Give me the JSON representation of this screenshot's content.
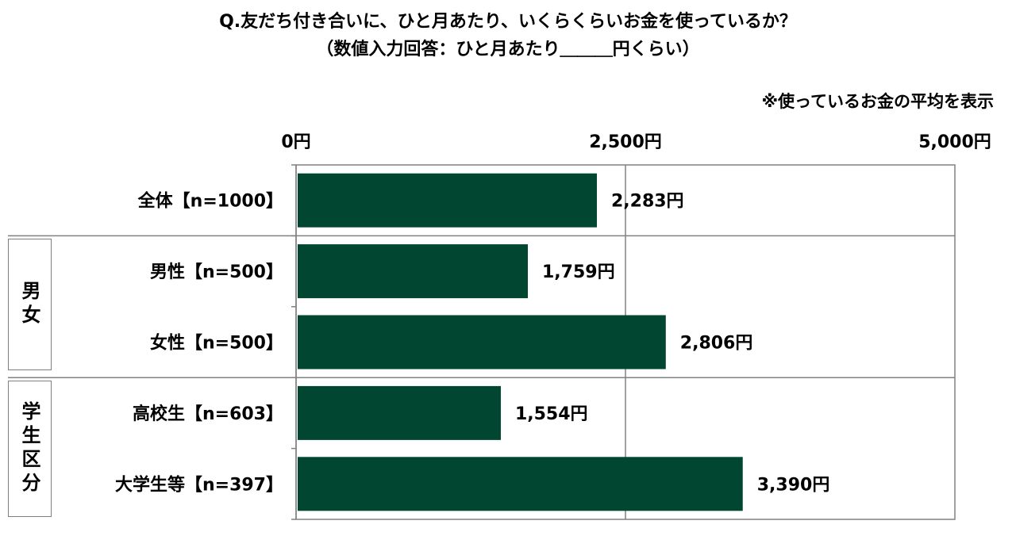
{
  "titles": {
    "line1": "Q.友だち付き合いに、ひと月あたり、いくらくらいお金を使っているか？",
    "line2": "（数値入力回答：ひと月あたり＿＿＿円くらい）",
    "note": "※使っているお金の平均を表示"
  },
  "groups": {
    "gender": "男女",
    "student": "学生区分"
  },
  "colors": {
    "bar": "#004631",
    "grid": "#808080",
    "divider": "#808080"
  },
  "chart_data": {
    "type": "bar",
    "orientation": "horizontal",
    "categories": [
      "全体【n=1000】",
      "男性【n=500】",
      "女性【n=500】",
      "高校生【n=603】",
      "大学生等【n=397】"
    ],
    "values": [
      2283,
      1759,
      2806,
      1554,
      3390
    ],
    "value_labels": [
      "2,283円",
      "1,759円",
      "2,806円",
      "1,554円",
      "3,390円"
    ],
    "xlim": [
      0,
      5000
    ],
    "x_ticks": [
      0,
      2500,
      5000
    ],
    "x_tick_labels": [
      "0円",
      "2,500円",
      "5,000円"
    ],
    "x_axis_position": "top",
    "grid": true,
    "legend": "none"
  }
}
